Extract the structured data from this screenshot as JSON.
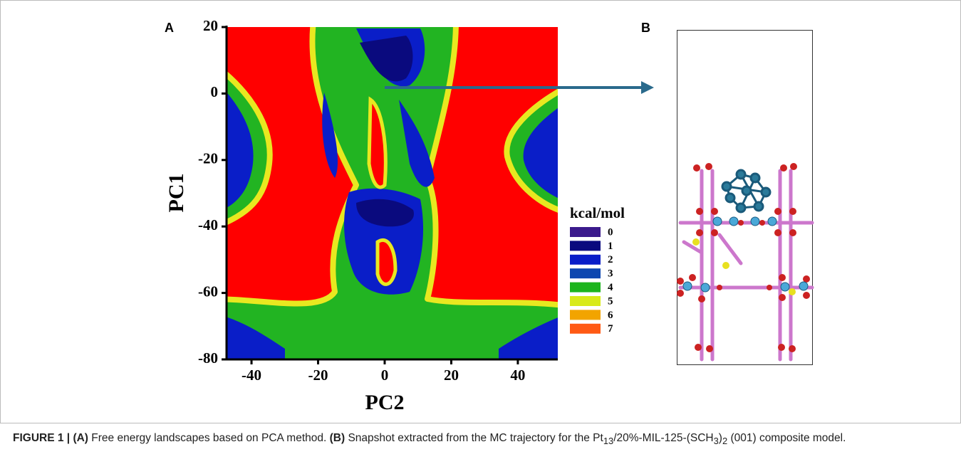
{
  "panels": {
    "a_label": "A",
    "b_label": "B"
  },
  "chart_data": {
    "type": "contour",
    "xlabel": "PC2",
    "ylabel": "PC1",
    "xlim": [
      -47.5,
      52
    ],
    "ylim": [
      -80,
      20
    ],
    "xticks": [
      -40,
      -20,
      0,
      20,
      40
    ],
    "yticks": [
      20,
      0,
      -20,
      -40,
      -60,
      -80
    ],
    "colorbar": {
      "title": "kcal/mol",
      "levels": [
        0,
        1,
        2,
        3,
        4,
        5,
        6,
        7
      ],
      "colors": [
        "#3b1a8c",
        "#0a0a7e",
        "#0a1ec8",
        "#0d46b0",
        "#1cb41c",
        "#d8ea18",
        "#f2a400",
        "#ff5a14"
      ]
    }
  },
  "caption": {
    "label": "FIGURE 1 |",
    "a": "(A)",
    "a_text": " Free energy landscapes based on PCA method. ",
    "b": "(B)",
    "b_text_1": " Snapshot extracted from the MC trajectory for the Pt",
    "b_sub_1": "13",
    "b_text_2": "/20%-MIL-125-(SCH",
    "b_sub_2": "3",
    "b_text_3": ")",
    "b_sub_3": "2",
    "b_text_4": " (001) composite model."
  }
}
